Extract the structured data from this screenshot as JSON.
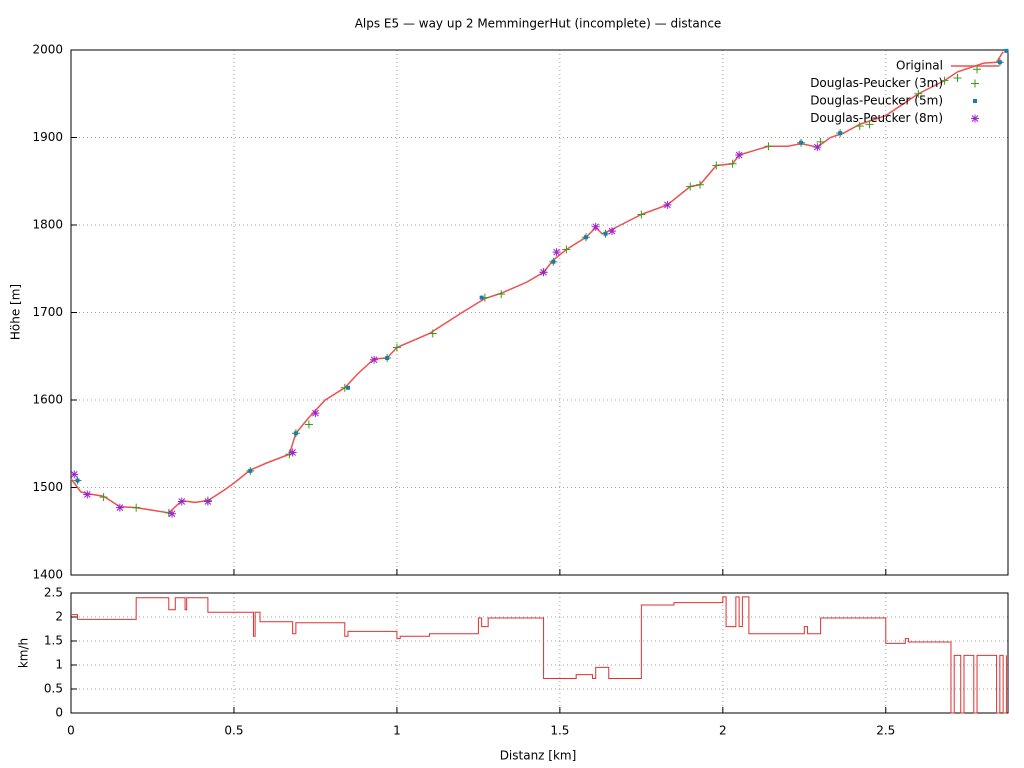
{
  "chart_data": [
    {
      "type": "line",
      "title": "Alps E5 — way up 2 MemmingerHut (incomplete) — distance",
      "y_label": "Höhe [m]",
      "xlim": [
        0,
        2.875
      ],
      "ylim": [
        1400,
        2000
      ],
      "xticks": [
        0,
        0.5,
        1,
        1.5,
        2,
        2.5
      ],
      "yticks": [
        1400,
        1500,
        1600,
        1700,
        1800,
        1900,
        2000
      ],
      "grid": true,
      "legend_position": "top right",
      "series": [
        {
          "name": "Original",
          "color": "#f05050",
          "style": "line",
          "x": [
            0,
            0.03,
            0.05,
            0.1,
            0.15,
            0.2,
            0.25,
            0.3,
            0.34,
            0.38,
            0.42,
            0.47,
            0.5,
            0.55,
            0.6,
            0.67,
            0.69,
            0.73,
            0.78,
            0.84,
            0.88,
            0.93,
            0.97,
            1.0,
            1.1,
            1.2,
            1.27,
            1.32,
            1.4,
            1.45,
            1.48,
            1.52,
            1.58,
            1.61,
            1.63,
            1.66,
            1.75,
            1.83,
            1.9,
            1.93,
            1.98,
            2.03,
            2.05,
            2.14,
            2.2,
            2.24,
            2.29,
            2.33,
            2.37,
            2.42,
            2.5,
            2.6,
            2.68,
            2.72,
            2.8,
            2.84,
            2.86
          ],
          "values": [
            1510,
            1495,
            1493,
            1490,
            1478,
            1477,
            1474,
            1471,
            1485,
            1483,
            1485,
            1497,
            1505,
            1520,
            1528,
            1538,
            1562,
            1580,
            1600,
            1614,
            1630,
            1647,
            1648,
            1660,
            1676,
            1700,
            1716,
            1722,
            1735,
            1746,
            1760,
            1772,
            1786,
            1797,
            1790,
            1795,
            1812,
            1823,
            1844,
            1846,
            1868,
            1870,
            1880,
            1890,
            1890,
            1893,
            1889,
            1900,
            1905,
            1915,
            1925,
            1950,
            1965,
            1975,
            1985,
            1986,
            1998
          ]
        },
        {
          "name": "Douglas-Peucker (3m)",
          "color": "#3a9a1a",
          "style": "plus",
          "x": [
            0.02,
            0.1,
            0.2,
            0.3,
            0.42,
            0.55,
            0.67,
            0.69,
            0.73,
            0.84,
            0.97,
            1.0,
            1.11,
            1.27,
            1.32,
            1.45,
            1.48,
            1.52,
            1.58,
            1.64,
            1.75,
            1.9,
            1.93,
            1.98,
            2.03,
            2.14,
            2.24,
            2.3,
            2.36,
            2.42,
            2.45,
            2.6,
            2.68,
            2.72,
            2.78,
            2.85
          ],
          "values": [
            1508,
            1489,
            1477,
            1471,
            1485,
            1519,
            1538,
            1562,
            1572,
            1614,
            1648,
            1660,
            1676,
            1717,
            1721,
            1746,
            1758,
            1772,
            1786,
            1790,
            1812,
            1844,
            1846,
            1868,
            1870,
            1890,
            1894,
            1895,
            1905,
            1913,
            1915,
            1950,
            1965,
            1968,
            1978,
            1986
          ]
        },
        {
          "name": "Douglas-Peucker (5m)",
          "color": "#1a7ab5",
          "style": "dot",
          "x": [
            0.02,
            0.55,
            0.69,
            0.85,
            0.97,
            1.26,
            1.48,
            1.58,
            1.64,
            2.24,
            2.36,
            2.85,
            2.87
          ],
          "values": [
            1508,
            1519,
            1562,
            1614,
            1648,
            1717,
            1758,
            1786,
            1790,
            1894,
            1905,
            1986,
            1999
          ]
        },
        {
          "name": "Douglas-Peucker (8m)",
          "color": "#a020d0",
          "style": "star",
          "x": [
            0.01,
            0.05,
            0.15,
            0.31,
            0.34,
            0.42,
            0.68,
            0.75,
            0.93,
            1.45,
            1.49,
            1.61,
            1.66,
            1.83,
            2.05,
            2.29
          ],
          "values": [
            1515,
            1492,
            1477,
            1470,
            1484,
            1484,
            1540,
            1585,
            1646,
            1746,
            1769,
            1798,
            1793,
            1823,
            1880,
            1889
          ]
        }
      ]
    },
    {
      "type": "step",
      "x_label": "Distanz [km]",
      "y_label": "km/h",
      "xlim": [
        0,
        2.875
      ],
      "ylim": [
        0,
        2.5
      ],
      "xticks": [
        0,
        0.5,
        1,
        1.5,
        2,
        2.5
      ],
      "yticks": [
        0,
        0.5,
        1,
        1.5,
        2,
        2.5
      ],
      "grid": true,
      "series": [
        {
          "color": "#e03030",
          "x": [
            0,
            0.02,
            0.2,
            0.3,
            0.31,
            0.32,
            0.35,
            0.355,
            0.42,
            0.56,
            0.565,
            0.58,
            0.68,
            0.69,
            0.75,
            0.84,
            0.85,
            1.0,
            1.01,
            1.1,
            1.25,
            1.26,
            1.28,
            1.3,
            1.45,
            1.52,
            1.55,
            1.6,
            1.61,
            1.65,
            1.75,
            1.85,
            2.0,
            2.01,
            2.04,
            2.05,
            2.06,
            2.08,
            2.25,
            2.26,
            2.3,
            2.5,
            2.56,
            2.57,
            2.7,
            2.71,
            2.73,
            2.74,
            2.77,
            2.78,
            2.84,
            2.85,
            2.86,
            2.87
          ],
          "values": [
            2.05,
            1.95,
            2.4,
            2.15,
            2.15,
            2.4,
            2.15,
            2.4,
            2.1,
            1.6,
            2.1,
            1.9,
            1.65,
            1.88,
            1.88,
            1.6,
            1.7,
            1.55,
            1.6,
            1.65,
            1.98,
            1.8,
            1.98,
            1.98,
            0.72,
            0.72,
            0.8,
            0.72,
            0.95,
            0.72,
            2.25,
            2.3,
            2.42,
            1.8,
            2.42,
            1.8,
            2.42,
            1.65,
            1.8,
            1.65,
            1.98,
            1.45,
            1.55,
            1.48,
            0,
            1.2,
            0,
            1.2,
            0,
            1.2,
            0,
            1.2,
            0,
            1.2
          ]
        }
      ]
    }
  ]
}
